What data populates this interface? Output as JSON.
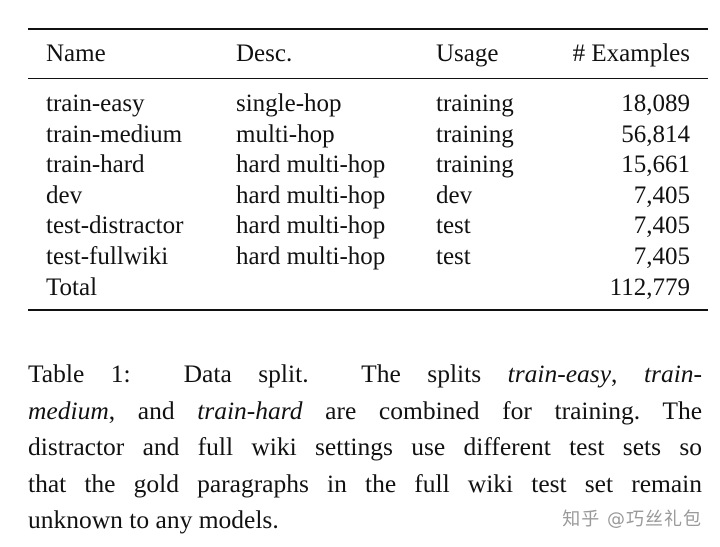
{
  "table": {
    "headers": [
      "Name",
      "Desc.",
      "Usage",
      "# Examples"
    ],
    "rows": [
      {
        "name": "train-easy",
        "desc": "single-hop",
        "usage": "training",
        "examples": "18,089"
      },
      {
        "name": "train-medium",
        "desc": "multi-hop",
        "usage": "training",
        "examples": "56,814"
      },
      {
        "name": "train-hard",
        "desc": "hard multi-hop",
        "usage": "training",
        "examples": "15,661"
      },
      {
        "name": "dev",
        "desc": "hard multi-hop",
        "usage": "dev",
        "examples": "7,405"
      },
      {
        "name": "test-distractor",
        "desc": "hard multi-hop",
        "usage": "test",
        "examples": "7,405"
      },
      {
        "name": "test-fullwiki",
        "desc": "hard multi-hop",
        "usage": "test",
        "examples": "7,405"
      }
    ],
    "total": {
      "name": "Total",
      "desc": "",
      "usage": "",
      "examples": "112,779"
    }
  },
  "caption": {
    "label": "Table 1:",
    "title": "Data split.",
    "s1": "The splits",
    "it1": "train-easy",
    "c1": ",",
    "it2a": "train-",
    "it2b": "medium",
    "s2": ", and",
    "it3": "train-hard",
    "s3": "are combined for training. The",
    "line3": "distractor and full wiki settings use different test sets so",
    "line4": "that the gold paragraphs in the full wiki test set remain",
    "line5": "unknown to any models."
  },
  "watermark": "知乎 @巧丝礼包"
}
